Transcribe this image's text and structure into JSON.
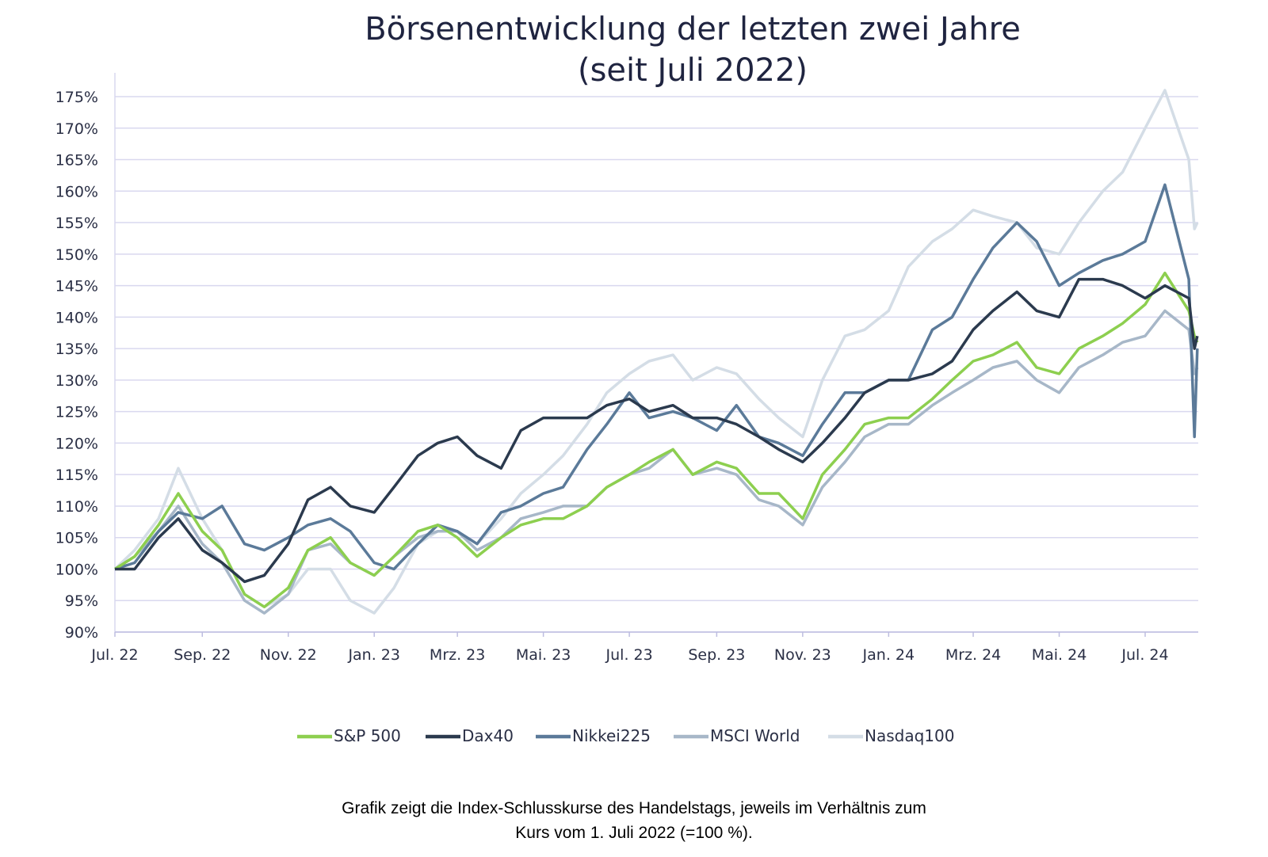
{
  "chart_data": {
    "type": "line",
    "title": "Börsenentwicklung der letzten zwei Jahre",
    "subtitle": "(seit Juli 2022)",
    "xlabel": "",
    "ylabel": "",
    "ylim": [
      90,
      175
    ],
    "yticks": [
      "90%",
      "95%",
      "100%",
      "105%",
      "110%",
      "115%",
      "120%",
      "125%",
      "130%",
      "135%",
      "140%",
      "145%",
      "150%",
      "155%",
      "160%",
      "165%",
      "170%",
      "175%"
    ],
    "yticks_values": [
      90,
      95,
      100,
      105,
      110,
      115,
      120,
      125,
      130,
      135,
      140,
      145,
      150,
      155,
      160,
      165,
      170,
      175
    ],
    "xticks": [
      {
        "label": "Jul. 22",
        "date": "2022-07-01"
      },
      {
        "label": "Sep. 22",
        "date": "2022-09-01"
      },
      {
        "label": "Nov. 22",
        "date": "2022-11-01"
      },
      {
        "label": "Jan. 23",
        "date": "2023-01-01"
      },
      {
        "label": "Mrz. 23",
        "date": "2023-03-01"
      },
      {
        "label": "Mai. 23",
        "date": "2023-05-01"
      },
      {
        "label": "Jul. 23",
        "date": "2023-07-01"
      },
      {
        "label": "Sep. 23",
        "date": "2023-09-01"
      },
      {
        "label": "Nov. 23",
        "date": "2023-11-01"
      },
      {
        "label": "Jan. 24",
        "date": "2024-01-01"
      },
      {
        "label": "Mrz. 24",
        "date": "2024-03-01"
      },
      {
        "label": "Mai. 24",
        "date": "2024-05-01"
      },
      {
        "label": "Jul. 24",
        "date": "2024-07-01"
      }
    ],
    "grid": true,
    "legend_position": "bottom",
    "x": [
      "2022-07-01",
      "2022-07-15",
      "2022-08-01",
      "2022-08-15",
      "2022-09-01",
      "2022-09-15",
      "2022-10-01",
      "2022-10-15",
      "2022-11-01",
      "2022-11-15",
      "2022-12-01",
      "2022-12-15",
      "2023-01-01",
      "2023-01-15",
      "2023-02-01",
      "2023-02-15",
      "2023-03-01",
      "2023-03-15",
      "2023-04-01",
      "2023-04-15",
      "2023-05-01",
      "2023-05-15",
      "2023-06-01",
      "2023-06-15",
      "2023-07-01",
      "2023-07-15",
      "2023-08-01",
      "2023-08-15",
      "2023-09-01",
      "2023-09-15",
      "2023-10-01",
      "2023-10-15",
      "2023-11-01",
      "2023-11-15",
      "2023-12-01",
      "2023-12-15",
      "2024-01-01",
      "2024-01-15",
      "2024-02-01",
      "2024-02-15",
      "2024-03-01",
      "2024-03-15",
      "2024-04-01",
      "2024-04-15",
      "2024-05-01",
      "2024-05-15",
      "2024-06-01",
      "2024-06-15",
      "2024-07-01",
      "2024-07-15",
      "2024-08-01",
      "2024-08-05",
      "2024-08-07"
    ],
    "series": [
      {
        "name": "Nasdaq100",
        "color": "#d4dde6",
        "values": [
          100,
          103,
          108,
          116,
          108,
          103,
          96,
          94,
          96,
          100,
          100,
          95,
          93,
          97,
          104,
          106,
          106,
          104,
          108,
          112,
          115,
          118,
          123,
          128,
          131,
          133,
          134,
          130,
          132,
          131,
          127,
          124,
          121,
          130,
          137,
          138,
          141,
          148,
          152,
          154,
          157,
          156,
          155,
          151,
          150,
          155,
          160,
          163,
          170,
          176,
          165,
          154,
          155
        ]
      },
      {
        "name": "MSCI World",
        "color": "#a7b7c8",
        "values": [
          100,
          102,
          106,
          110,
          104,
          101,
          95,
          93,
          96,
          103,
          104,
          101,
          99,
          102,
          105,
          106,
          106,
          103,
          105,
          108,
          109,
          110,
          110,
          113,
          115,
          116,
          119,
          115,
          116,
          115,
          111,
          110,
          107,
          113,
          117,
          121,
          123,
          123,
          126,
          128,
          130,
          132,
          133,
          130,
          128,
          132,
          134,
          136,
          137,
          141,
          138,
          131,
          132
        ]
      },
      {
        "name": "Nikkei225",
        "color": "#5b7a99",
        "values": [
          100,
          101,
          106,
          109,
          108,
          110,
          104,
          103,
          105,
          107,
          108,
          106,
          101,
          100,
          104,
          107,
          106,
          104,
          109,
          110,
          112,
          113,
          119,
          123,
          128,
          124,
          125,
          124,
          122,
          126,
          121,
          120,
          118,
          123,
          128,
          128,
          130,
          130,
          138,
          140,
          146,
          151,
          155,
          152,
          145,
          147,
          149,
          150,
          152,
          161,
          146,
          121,
          135
        ]
      },
      {
        "name": "S&P 500",
        "color": "#8dcf4f",
        "values": [
          100,
          102,
          107,
          112,
          106,
          103,
          96,
          94,
          97,
          103,
          105,
          101,
          99,
          102,
          106,
          107,
          105,
          102,
          105,
          107,
          108,
          108,
          110,
          113,
          115,
          117,
          119,
          115,
          117,
          116,
          112,
          112,
          108,
          115,
          119,
          123,
          124,
          124,
          127,
          130,
          133,
          134,
          136,
          132,
          131,
          135,
          137,
          139,
          142,
          147,
          141,
          137,
          136
        ]
      },
      {
        "name": "Dax40",
        "color": "#2b3a4e",
        "values": [
          100,
          100,
          105,
          108,
          103,
          101,
          98,
          99,
          104,
          111,
          113,
          110,
          109,
          113,
          118,
          120,
          121,
          118,
          116,
          122,
          124,
          124,
          124,
          126,
          127,
          125,
          126,
          124,
          124,
          123,
          121,
          119,
          117,
          120,
          124,
          128,
          130,
          130,
          131,
          133,
          138,
          141,
          144,
          141,
          140,
          146,
          146,
          145,
          143,
          145,
          143,
          135,
          137
        ]
      }
    ],
    "legend_order": [
      "S&P 500",
      "Dax40",
      "Nikkei225",
      "MSCI World",
      "Nasdaq100"
    ],
    "gridline_color": "#d9d8ef"
  },
  "footnote": {
    "line1": "Grafik zeigt die Index-Schlusskurse des Handelstags, jeweils im Verhältnis zum",
    "line2": "Kurs vom 1. Juli 2022 (=100 %)."
  }
}
